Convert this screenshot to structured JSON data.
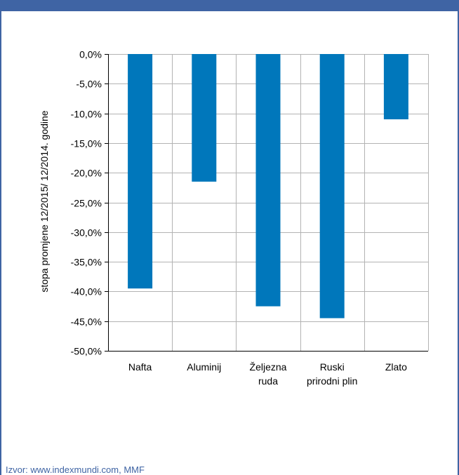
{
  "source": "Izvor: www.indexmundi.com, MMF",
  "colors": {
    "frame": "#3f64a4",
    "bar": "#0077bb",
    "grid": "#b3b3b3",
    "source_text": "#3f64a4"
  },
  "chart_data": {
    "type": "bar",
    "title": "",
    "xlabel": "",
    "ylabel": "stopa promjene 12/2015/ 12/2014. godine",
    "categories": [
      [
        "Nafta"
      ],
      [
        "Aluminij"
      ],
      [
        "Željezna",
        "ruda"
      ],
      [
        "Ruski",
        "prirodni plin"
      ],
      [
        "Zlato"
      ]
    ],
    "values": [
      -39.5,
      -21.5,
      -42.5,
      -44.5,
      -11.0
    ],
    "ylim": [
      -50,
      0
    ],
    "yticks": [
      0,
      -5,
      -10,
      -15,
      -20,
      -25,
      -30,
      -35,
      -40,
      -45,
      -50
    ],
    "ytick_labels": [
      "0,0%",
      "-5,0%",
      "-10,0%",
      "-15,0%",
      "-20,0%",
      "-25,0%",
      "-30,0%",
      "-35,0%",
      "-40,0%",
      "-45,0%",
      "-50,0%"
    ],
    "grid": true,
    "legend": "none"
  }
}
